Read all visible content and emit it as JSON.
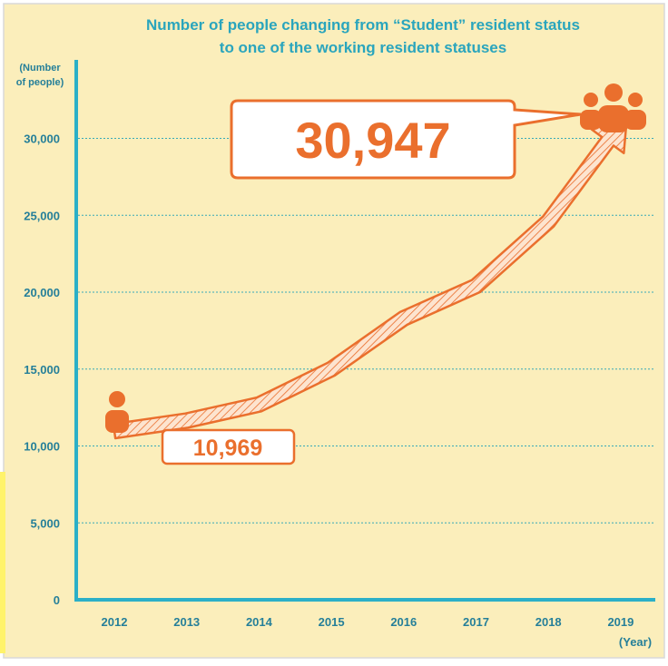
{
  "chart_data": {
    "type": "line",
    "title_line1": "Number of people changing from “Student” resident status",
    "title_line2": "to one of the working resident statuses",
    "ylabel_line1": "(Number",
    "ylabel_line2": "of people)",
    "xlabel": "(Year)",
    "categories": [
      "2012",
      "2013",
      "2014",
      "2015",
      "2016",
      "2017",
      "2018",
      "2019"
    ],
    "series": [
      {
        "values": [
          10969,
          11650,
          12700,
          15000,
          18300,
          20400,
          24600,
          30947
        ]
      }
    ],
    "yticks": [
      {
        "value": 0,
        "label": "0"
      },
      {
        "value": 5000,
        "label": "5,000"
      },
      {
        "value": 10000,
        "label": "10,000"
      },
      {
        "value": 15000,
        "label": "15,000"
      },
      {
        "value": 20000,
        "label": "20,000"
      },
      {
        "value": 25000,
        "label": "25,000"
      },
      {
        "value": 30000,
        "label": "30,000"
      }
    ],
    "ylim": [
      0,
      34000
    ],
    "grid": true,
    "annotations": {
      "start_value": "10,969",
      "end_value": "30,947"
    },
    "icons": {
      "start": "person-icon",
      "end": "people-group-icon"
    },
    "colors": {
      "background": "#fbeebb",
      "frame": "#d9d9d9",
      "axis": "#2bafc7",
      "gridline": "#39a9b8",
      "title": "#2aa5bd",
      "ticklabel": "#257f99",
      "accent": "#ea6f2d",
      "label_box_fill": "#ffffff"
    }
  }
}
